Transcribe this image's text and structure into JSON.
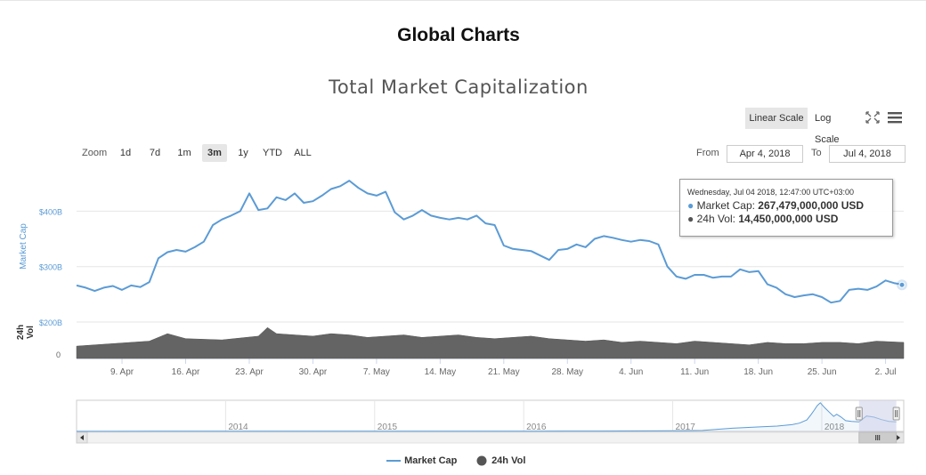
{
  "page": {
    "title": "Global Charts"
  },
  "chart_title": "Total Market Capitalization",
  "toolbar": {
    "linear_scale": "Linear Scale",
    "log_scale": "Log Scale",
    "fullscreen_icon": "fullscreen-icon",
    "menu_icon": "hamburger-menu-icon"
  },
  "range_selector": {
    "zoom_label": "Zoom",
    "buttons": [
      "1d",
      "7d",
      "1m",
      "3m",
      "1y",
      "YTD",
      "ALL"
    ],
    "active": "3m",
    "from_label": "From",
    "from_value": "Apr 4, 2018",
    "to_label": "To",
    "to_value": "Jul 4, 2018"
  },
  "tooltip": {
    "date": "Wednesday, Jul 04 2018, 12:47:00 UTC+03:00",
    "market_cap_label": "Market Cap:",
    "market_cap_value": "267,479,000,000 USD",
    "vol_label": "24h Vol:",
    "vol_value": "14,450,000,000 USD"
  },
  "colors": {
    "market_cap": "#5b9bd5",
    "volume": "#646464",
    "navigator_mask": "#ccd0e8",
    "grid": "#e6e6e6",
    "axis_text": "#666666"
  },
  "legend": {
    "market_cap": "Market Cap",
    "vol": "24h Vol"
  },
  "chart_data": {
    "type": "line",
    "title": "Total Market Capitalization",
    "ylabel": "Market Cap",
    "ylabel_secondary": "24h Vol",
    "y_ticks": [
      "$200B",
      "$300B",
      "$400B"
    ],
    "y_secondary_ticks": [
      "0"
    ],
    "ylim": [
      200,
      460
    ],
    "x_ticks": [
      "9. Apr",
      "16. Apr",
      "23. Apr",
      "30. Apr",
      "7. May",
      "14. May",
      "21. May",
      "28. May",
      "4. Jun",
      "11. Jun",
      "18. Jun",
      "25. Jun",
      "2. Jul"
    ],
    "x_tick_days": [
      5,
      12,
      19,
      26,
      33,
      40,
      47,
      54,
      61,
      68,
      75,
      82,
      89
    ],
    "xlim": [
      0,
      91
    ],
    "grid": true,
    "legend_position": "bottom-center",
    "series": [
      {
        "name": "Market Cap",
        "unit": "B USD",
        "x": [
          0,
          1,
          2,
          3,
          4,
          5,
          6,
          7,
          8,
          9,
          10,
          11,
          12,
          13,
          14,
          15,
          16,
          17,
          18,
          19,
          20,
          21,
          22,
          23,
          24,
          25,
          26,
          27,
          28,
          29,
          30,
          31,
          32,
          33,
          34,
          35,
          36,
          37,
          38,
          39,
          40,
          41,
          42,
          43,
          44,
          45,
          46,
          47,
          48,
          49,
          50,
          51,
          52,
          53,
          54,
          55,
          56,
          57,
          58,
          59,
          60,
          61,
          62,
          63,
          64,
          65,
          66,
          67,
          68,
          69,
          70,
          71,
          72,
          73,
          74,
          75,
          76,
          77,
          78,
          79,
          80,
          81,
          82,
          83,
          84,
          85,
          86,
          87,
          88,
          89,
          90,
          91
        ],
        "values": [
          266,
          262,
          256,
          262,
          265,
          258,
          266,
          263,
          272,
          315,
          326,
          330,
          327,
          335,
          345,
          375,
          385,
          392,
          400,
          432,
          402,
          405,
          425,
          420,
          432,
          415,
          418,
          428,
          440,
          445,
          455,
          442,
          432,
          428,
          435,
          398,
          385,
          392,
          402,
          392,
          388,
          385,
          388,
          385,
          392,
          378,
          375,
          338,
          332,
          330,
          328,
          320,
          312,
          330,
          332,
          340,
          335,
          350,
          355,
          352,
          348,
          345,
          348,
          346,
          340,
          300,
          282,
          278,
          285,
          285,
          280,
          282,
          282,
          295,
          290,
          292,
          268,
          262,
          250,
          245,
          248,
          250,
          245,
          235,
          238,
          258,
          260,
          258,
          264,
          275,
          270,
          267
        ]
      },
      {
        "name": "24h Vol",
        "unit": "B USD",
        "x": [
          0,
          4,
          8,
          10,
          12,
          16,
          20,
          21,
          22,
          24,
          26,
          28,
          30,
          32,
          34,
          36,
          38,
          40,
          42,
          44,
          46,
          48,
          50,
          52,
          54,
          56,
          58,
          60,
          62,
          64,
          66,
          68,
          70,
          72,
          74,
          76,
          78,
          80,
          82,
          84,
          86,
          88,
          91
        ],
        "values": [
          10,
          12,
          14,
          20,
          16,
          15,
          18,
          25,
          20,
          19,
          18,
          20,
          19,
          17,
          18,
          19,
          17,
          18,
          19,
          17,
          16,
          17,
          18,
          16,
          15,
          14,
          15,
          13,
          14,
          13,
          12,
          14,
          13,
          12,
          11,
          13,
          12,
          12,
          13,
          13,
          12,
          14,
          13
        ]
      }
    ]
  },
  "navigator": {
    "year_labels": [
      "2014",
      "2015",
      "2016",
      "2017",
      "2018"
    ],
    "year_positions": [
      2014,
      2015,
      2016,
      2017,
      2018
    ],
    "range": [
      2013.0,
      2018.55
    ],
    "selected": [
      2018.25,
      2018.5
    ],
    "series_x": [
      2013.0,
      2013.5,
      2014.0,
      2014.5,
      2015.0,
      2015.5,
      2016.0,
      2016.5,
      2017.0,
      2017.2,
      2017.4,
      2017.6,
      2017.7,
      2017.8,
      2017.85,
      2017.9,
      2017.93,
      2017.95,
      2017.97,
      2017.99,
      2018.02,
      2018.05,
      2018.08,
      2018.1,
      2018.13,
      2018.16,
      2018.2,
      2018.25,
      2018.3,
      2018.35,
      2018.4,
      2018.45,
      2018.5
    ],
    "series_values": [
      2,
      4,
      8,
      5,
      4,
      4,
      7,
      10,
      18,
      28,
      90,
      130,
      150,
      190,
      230,
      320,
      480,
      600,
      720,
      800,
      660,
      540,
      420,
      480,
      400,
      300,
      280,
      265,
      430,
      400,
      330,
      280,
      267
    ]
  }
}
